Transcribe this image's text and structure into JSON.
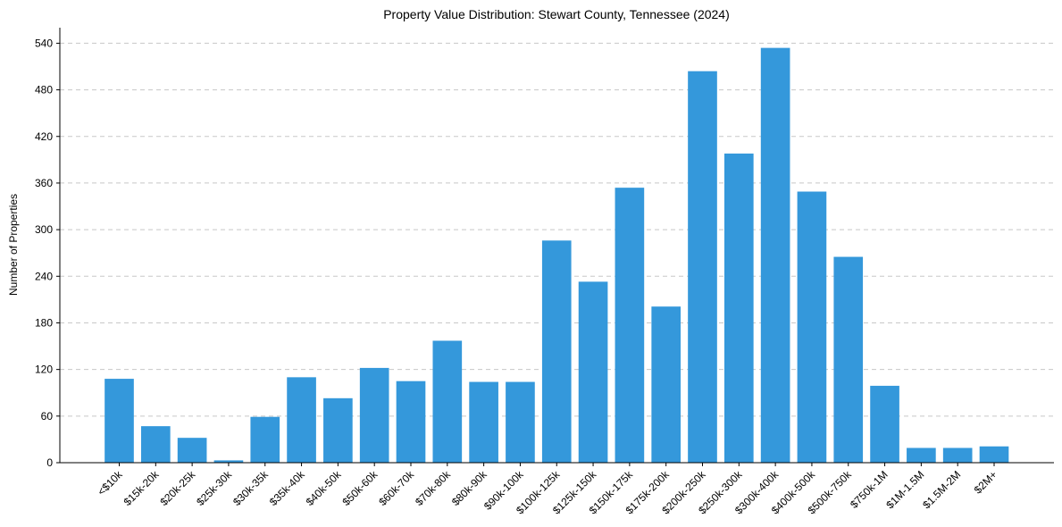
{
  "chart_data": {
    "type": "bar",
    "title": "Property Value Distribution: Stewart County, Tennessee (2024)",
    "xlabel": "",
    "ylabel": "Number of Properties",
    "ylim": [
      0,
      560
    ],
    "yticks": [
      0,
      60,
      120,
      180,
      240,
      300,
      360,
      420,
      480,
      540
    ],
    "grid": "y-dashed",
    "bar_color": "#3498db",
    "categories": [
      "<$10k",
      "$15k-20k",
      "$20k-25k",
      "$25k-30k",
      "$30k-35k",
      "$35k-40k",
      "$40k-50k",
      "$50k-60k",
      "$60k-70k",
      "$70k-80k",
      "$80k-90k",
      "$90k-100k",
      "$100k-125k",
      "$125k-150k",
      "$150k-175k",
      "$175k-200k",
      "$200k-250k",
      "$250k-300k",
      "$300k-400k",
      "$400k-500k",
      "$500k-750k",
      "$750k-1M",
      "$1M-1.5M",
      "$1.5M-2M",
      "$2M+"
    ],
    "values": [
      108,
      47,
      32,
      3,
      59,
      110,
      83,
      122,
      105,
      157,
      104,
      104,
      286,
      233,
      354,
      201,
      504,
      398,
      534,
      349,
      265,
      99,
      19,
      19,
      21
    ]
  }
}
